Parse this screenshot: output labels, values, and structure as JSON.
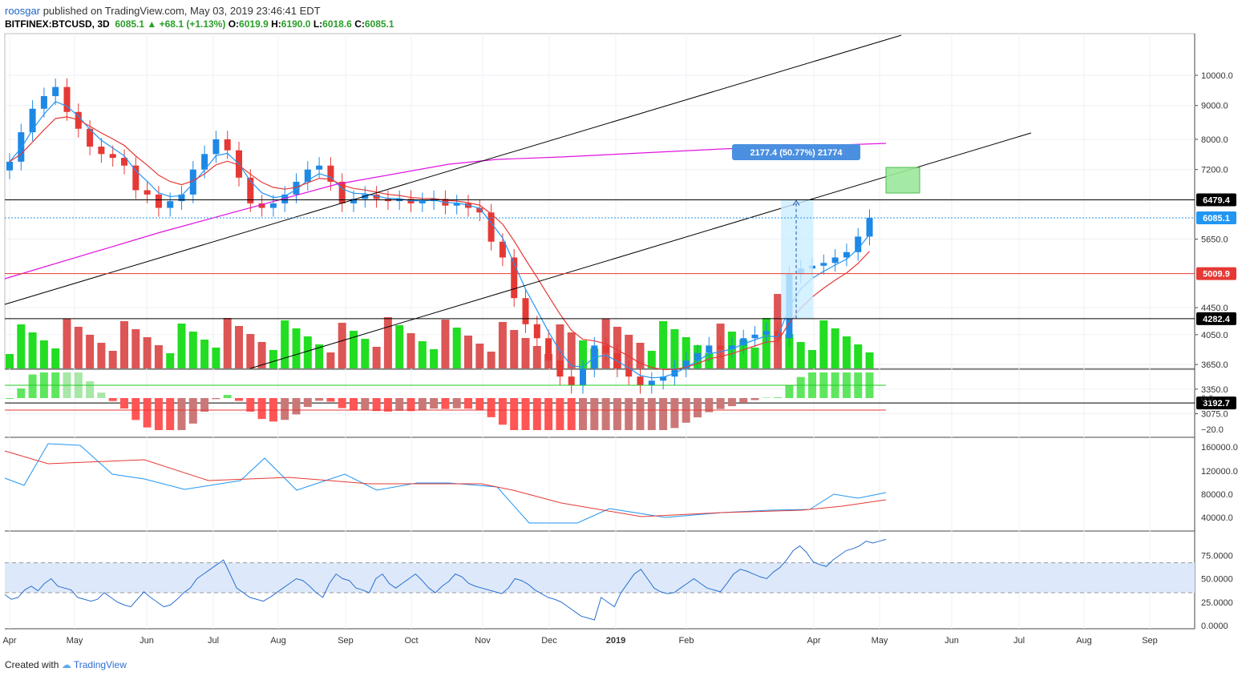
{
  "header": {
    "author": "roosgar",
    "published_text": "published on TradingView.com, May 03, 2019 23:46:41 EDT",
    "symbol": "BITFINEX:BTCUSD, 3D",
    "last": "6085.1",
    "change": "+68.1 (+1.13%)",
    "o_label": "O:",
    "o": "6019.9",
    "h_label": "H:",
    "h": "6190.0",
    "l_label": "L:",
    "l": "6018.6",
    "c_label": "C:",
    "c": "6085.1"
  },
  "footer": {
    "created_with": "Created with",
    "brand": "TradingView"
  },
  "colors": {
    "up": "#1e88e5",
    "down": "#e53935",
    "vol_up": "#22dd22",
    "vol_down": "#dd5555",
    "ema_fast": "#2196f3",
    "ema_slow": "#e53935",
    "sma_long": "#e014e0",
    "measure_fill": "#cceeff",
    "target_fill": "#9be89b"
  },
  "chart_data": {
    "type": "candlestick",
    "x_labels": [
      "Apr",
      "May",
      "Jun",
      "Jul",
      "Aug",
      "Sep",
      "Oct",
      "Nov",
      "Dec",
      "2019",
      "Feb",
      "Apr",
      "May",
      "Jun",
      "Jul",
      "Aug",
      "Sep"
    ],
    "price_axis_ticks": [
      "10000.0",
      "9000.0",
      "8000.0",
      "7200.0",
      "5650.0",
      "4450.0",
      "4050.0",
      "3650.0",
      "3350.0",
      "3075.0"
    ],
    "price_scale": "log",
    "candles_close_approx": [
      7400,
      8200,
      8900,
      9300,
      9600,
      8800,
      8300,
      7800,
      7600,
      7500,
      7300,
      6700,
      6600,
      6300,
      6450,
      6600,
      7200,
      7600,
      8000,
      7700,
      7000,
      6400,
      6300,
      6400,
      6600,
      6900,
      7200,
      7300,
      6900,
      6400,
      6500,
      6600,
      6500,
      6450,
      6500,
      6400,
      6450,
      6500,
      6350,
      6400,
      6300,
      6200,
      5600,
      5300,
      4600,
      4200,
      4000,
      3700,
      3500,
      3400,
      3600,
      3900,
      3800,
      3600,
      3500,
      3400,
      3450,
      3500,
      3600,
      3700,
      3800,
      3900,
      3850,
      3900,
      4000,
      4050,
      4100,
      4000,
      5000,
      5100,
      5150,
      5200,
      5300,
      5400,
      5700,
      6085
    ],
    "hlines": [
      {
        "label": "6479.4",
        "value": 6479.4,
        "color": "#000000"
      },
      {
        "label": "6085.1",
        "value": 6085.1,
        "color": "#2196f3"
      },
      {
        "label": "5009.9",
        "value": 5009.9,
        "color": "#e53935"
      },
      {
        "label": "4282.4",
        "value": 4282.4,
        "color": "#000000"
      },
      {
        "label": "3192.7",
        "value": 3192.7,
        "color": "#000000"
      }
    ],
    "measure_label": "2177.4 (50.77%) 21774",
    "macd_axis_ticks": [
      "0.0",
      "−20.0"
    ],
    "volume_osc_axis_ticks": [
      "160000.0",
      "120000.0",
      "80000.0",
      "40000.0"
    ],
    "rsi_axis_ticks": [
      "75.0000",
      "50.0000",
      "25.0000",
      "0.0000"
    ],
    "rsi_band": [
      35,
      67
    ],
    "rsi_values": [
      33,
      28,
      30,
      38,
      42,
      37,
      45,
      50,
      42,
      40,
      38,
      30,
      28,
      26,
      28,
      35,
      30,
      25,
      22,
      20,
      28,
      36,
      30,
      25,
      20,
      22,
      28,
      35,
      40,
      50,
      55,
      60,
      65,
      70,
      55,
      40,
      35,
      30,
      28,
      26,
      30,
      35,
      40,
      45,
      50,
      48,
      42,
      35,
      30,
      45,
      55,
      50,
      48,
      40,
      38,
      35,
      50,
      55,
      45,
      40,
      45,
      50,
      55,
      48,
      40,
      35,
      42,
      47,
      55,
      52,
      45,
      42,
      40,
      38,
      36,
      34,
      40,
      50,
      48,
      44,
      38,
      34,
      30,
      28,
      25,
      20,
      15,
      10,
      8,
      6,
      30,
      25,
      20,
      35,
      45,
      55,
      60,
      50,
      40,
      36,
      34,
      35,
      40,
      45,
      50,
      45,
      40,
      38,
      36,
      45,
      55,
      60,
      58,
      55,
      52,
      50,
      57,
      62,
      70,
      80,
      85,
      78,
      68,
      65,
      63,
      70,
      75,
      80,
      82,
      85,
      90,
      88,
      90,
      92
    ]
  }
}
